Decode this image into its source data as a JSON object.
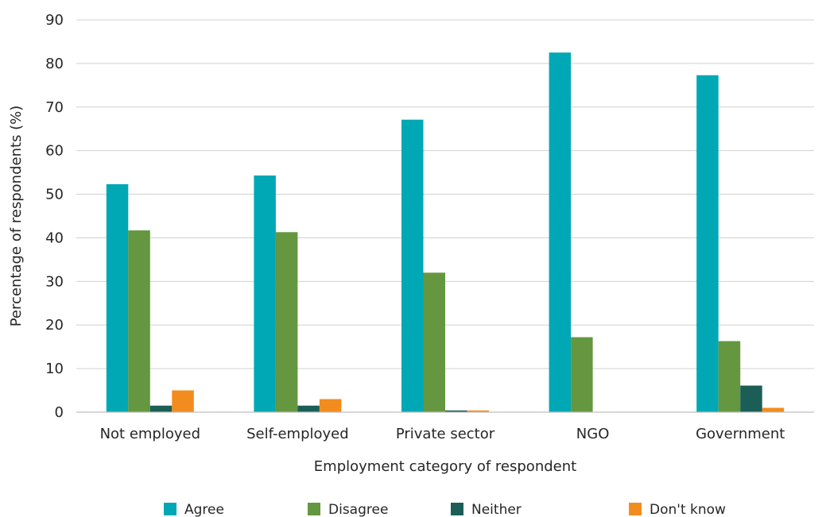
{
  "chart_data": {
    "type": "bar",
    "title": "",
    "xlabel": "Employment category of respondent",
    "ylabel": "Percentage of respondents (%)",
    "ylim": [
      0,
      90
    ],
    "yticks": [
      0,
      10,
      20,
      30,
      40,
      50,
      60,
      70,
      80,
      90
    ],
    "grid": true,
    "legend_position": "bottom",
    "categories": [
      "Not employed",
      "Self-employed",
      "Private sector",
      "NGO",
      "Government"
    ],
    "series": [
      {
        "name": "Agree",
        "color": "#00A8B5",
        "values": [
          52.3,
          54.3,
          67.1,
          82.5,
          77.3
        ]
      },
      {
        "name": "Disagree",
        "color": "#64973F",
        "values": [
          41.7,
          41.3,
          32.0,
          17.2,
          16.3
        ]
      },
      {
        "name": "Neither",
        "color": "#1B5E57",
        "values": [
          1.5,
          1.5,
          0.4,
          0,
          6.1
        ]
      },
      {
        "name": "Don't know",
        "color": "#F28C1E",
        "values": [
          5.0,
          3.0,
          0.4,
          0,
          1.0
        ]
      }
    ]
  }
}
